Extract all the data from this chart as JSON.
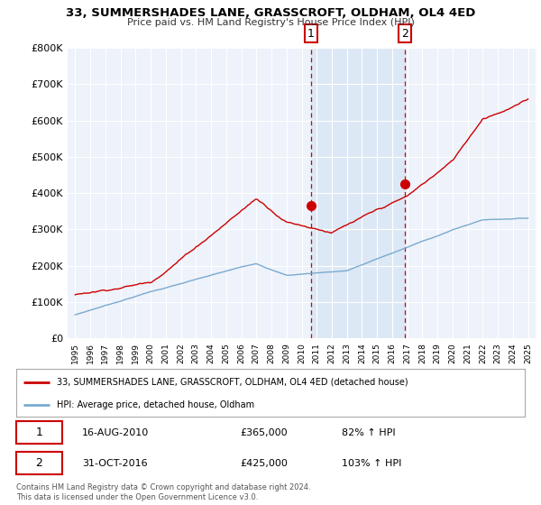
{
  "title": "33, SUMMERSHADES LANE, GRASSCROFT, OLDHAM, OL4 4ED",
  "subtitle": "Price paid vs. HM Land Registry's House Price Index (HPI)",
  "ylim": [
    0,
    800000
  ],
  "yticks": [
    0,
    100000,
    200000,
    300000,
    400000,
    500000,
    600000,
    700000,
    800000
  ],
  "ytick_labels": [
    "£0",
    "£100K",
    "£200K",
    "£300K",
    "£400K",
    "£500K",
    "£600K",
    "£700K",
    "£800K"
  ],
  "xlim_start": 1994.5,
  "xlim_end": 2025.5,
  "red_color": "#cc0000",
  "blue_color": "#7aaad0",
  "vline_color": "#cc0000",
  "transaction1_x": 2010.62,
  "transaction1_y": 365000,
  "transaction2_x": 2016.83,
  "transaction2_y": 425000,
  "legend_label_red": "33, SUMMERSHADES LANE, GRASSCROFT, OLDHAM, OL4 4ED (detached house)",
  "legend_label_blue": "HPI: Average price, detached house, Oldham",
  "annot1_date": "16-AUG-2010",
  "annot1_price": "£365,000",
  "annot1_hpi": "82% ↑ HPI",
  "annot2_date": "31-OCT-2016",
  "annot2_price": "£425,000",
  "annot2_hpi": "103% ↑ HPI",
  "footer": "Contains HM Land Registry data © Crown copyright and database right 2024.\nThis data is licensed under the Open Government Licence v3.0.",
  "plot_bg_color": "#eef2fa",
  "span_color": "#dce8f5",
  "grid_color": "#ffffff"
}
